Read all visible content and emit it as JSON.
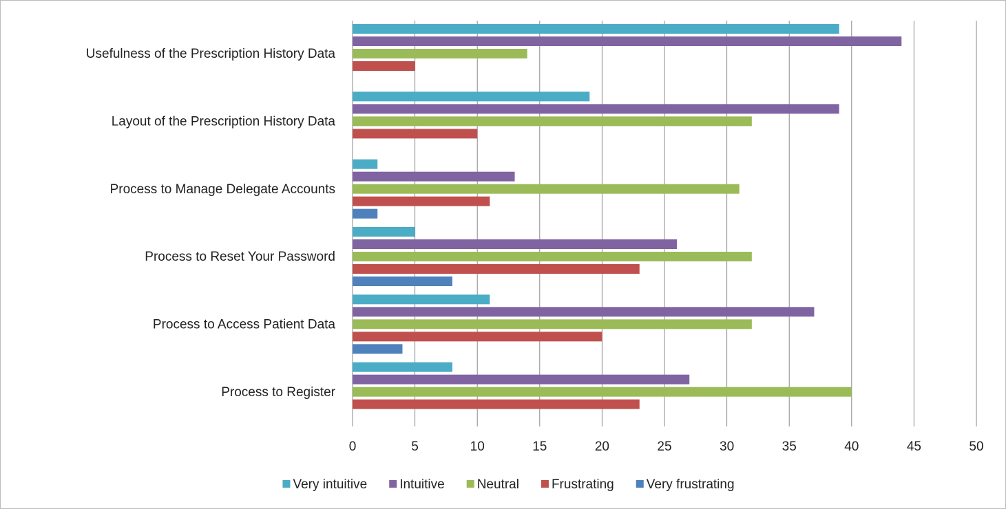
{
  "chart_data": {
    "type": "hbar",
    "categories": [
      "Usefulness of the Prescription History Data",
      "Layout of the Prescription History Data",
      "Process to Manage Delegate Accounts",
      "Process to Reset Your Password",
      "Process to Access Patient Data",
      "Process to Register"
    ],
    "series": [
      {
        "name": "Very intuitive",
        "color": "#4bacc6",
        "values": [
          39,
          19,
          2,
          5,
          11,
          8
        ]
      },
      {
        "name": "Intuitive",
        "color": "#8064a2",
        "values": [
          44,
          39,
          13,
          26,
          37,
          27
        ]
      },
      {
        "name": "Neutral",
        "color": "#9bbb59",
        "values": [
          14,
          32,
          31,
          32,
          32,
          40
        ]
      },
      {
        "name": "Frustrating",
        "color": "#c0504d",
        "values": [
          5,
          10,
          11,
          23,
          20,
          23
        ]
      },
      {
        "name": "Very frustrating",
        "color": "#4f81bd",
        "values": [
          0,
          0,
          2,
          8,
          4,
          0
        ]
      }
    ],
    "xlim": [
      0,
      50
    ],
    "xticks": [
      0,
      5,
      10,
      15,
      20,
      25,
      30,
      35,
      40,
      45,
      50
    ],
    "grid": true,
    "legend": "bottom"
  }
}
